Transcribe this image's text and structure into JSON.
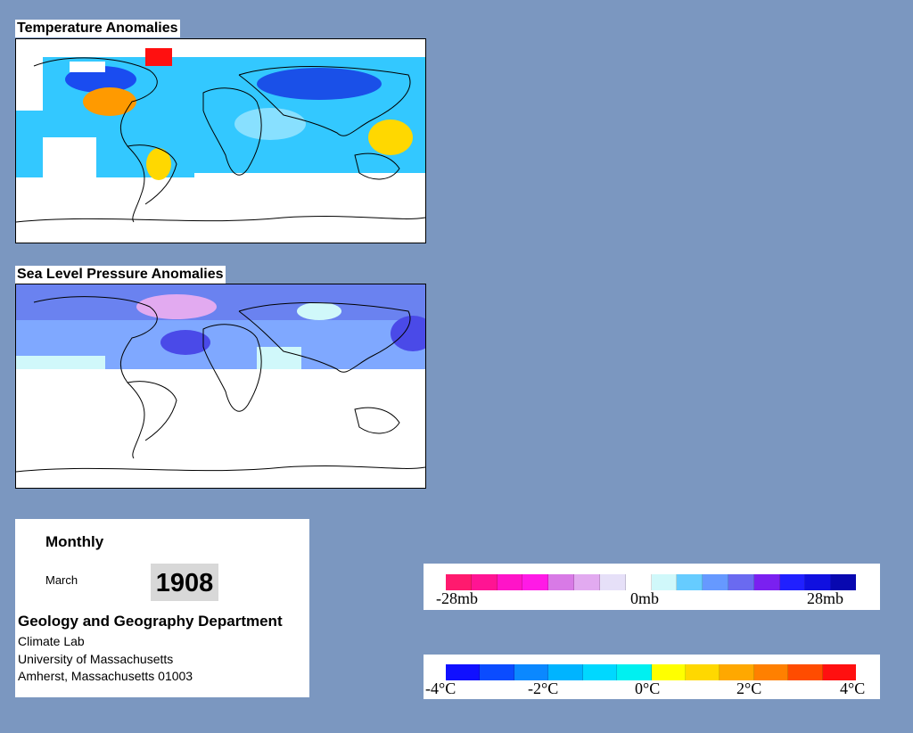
{
  "temperature_panel": {
    "title": "Temperature Anomalies"
  },
  "pressure_panel": {
    "title": "Sea Level Pressure Anomalies"
  },
  "info": {
    "frequency": "Monthly",
    "month": "March",
    "year": "1908",
    "department": "Geology and Geography Department",
    "address_lines": [
      "Climate Lab",
      "University of Massachusetts",
      "Amherst, Massachusetts 01003"
    ]
  },
  "pressure_legend": {
    "colors": [
      "#ff1a6e",
      "#ff1493",
      "#ff14c8",
      "#ff1ae6",
      "#d87ae6",
      "#e2aaf0",
      "#e6e0f8",
      "#ffffff",
      "#d0f8fa",
      "#66ccff",
      "#6699ff",
      "#6a6af0",
      "#7a20f0",
      "#2020ff",
      "#1010e0",
      "#0808b0"
    ],
    "labels": [
      "-28mb",
      "0mb",
      "28mb"
    ]
  },
  "temperature_legend": {
    "colors": [
      "#1010ff",
      "#0b4cff",
      "#0b88ff",
      "#00b4ff",
      "#00d8ff",
      "#00f0f0",
      "#ffff00",
      "#ffd800",
      "#ffa800",
      "#ff8000",
      "#ff4c00",
      "#ff1010"
    ],
    "labels": [
      "-4°C",
      "-2°C",
      "0°C",
      "2°C",
      "4°C"
    ]
  }
}
